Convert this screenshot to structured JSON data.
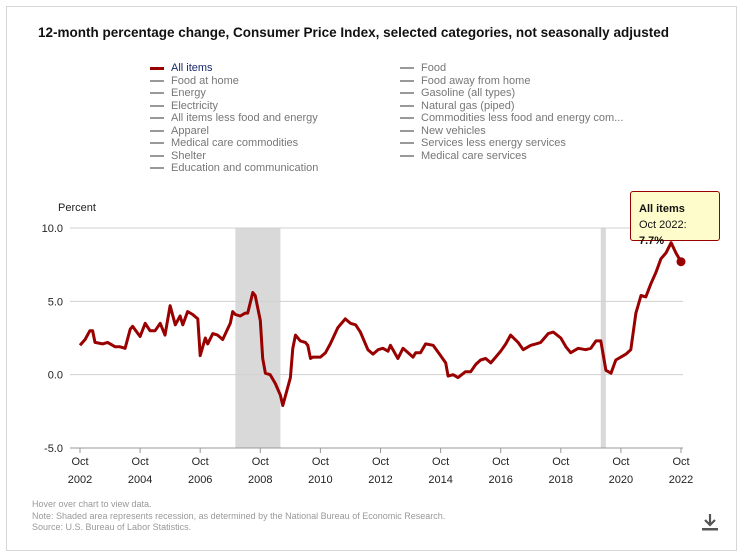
{
  "title": "12-month percentage change, Consumer Price Index, selected categories, not seasonally adjusted",
  "legend": {
    "col1": [
      "All items",
      "Food at home",
      "Energy",
      "Electricity",
      "All items less food and energy",
      "Apparel",
      "Medical care commodities",
      "Shelter",
      "Education and communication"
    ],
    "col2": [
      "Food",
      "Food away from home",
      "Gasoline (all types)",
      "Natural gas (piped)",
      "Commodities less food and energy com...",
      "New vehicles",
      "Services less energy services",
      "Medical care services"
    ]
  },
  "tooltip": {
    "title": "All items",
    "label": "Oct 2022:",
    "value": "7.7%"
  },
  "notes": [
    "Hover over chart to view data.",
    "Note: Shaded area represents recession, as determined by the National Bureau of Economic Research.",
    "Source: U.S. Bureau of Labor Statistics."
  ],
  "colors": {
    "series": "#990000",
    "recession": "#d9d9d9",
    "tooltip_bg": "#fffccc"
  },
  "icons": {
    "download": "download-icon"
  },
  "chart_data": {
    "type": "line",
    "ylabel": "Percent",
    "ylim": [
      -5.0,
      10.0
    ],
    "yticks": [
      "10.0",
      "5.0",
      "0.0",
      "-5.0"
    ],
    "ytick_values": [
      10,
      5,
      0,
      -5
    ],
    "xticks": [
      {
        "month": "Oct",
        "year": "2002",
        "t": 2002.75
      },
      {
        "month": "Oct",
        "year": "2004",
        "t": 2004.75
      },
      {
        "month": "Oct",
        "year": "2006",
        "t": 2006.75
      },
      {
        "month": "Oct",
        "year": "2008",
        "t": 2008.75
      },
      {
        "month": "Oct",
        "year": "2010",
        "t": 2010.75
      },
      {
        "month": "Oct",
        "year": "2012",
        "t": 2012.75
      },
      {
        "month": "Oct",
        "year": "2014",
        "t": 2014.75
      },
      {
        "month": "Oct",
        "year": "2016",
        "t": 2016.75
      },
      {
        "month": "Oct",
        "year": "2018",
        "t": 2018.75
      },
      {
        "month": "Oct",
        "year": "2020",
        "t": 2020.75
      },
      {
        "month": "Oct",
        "year": "2022",
        "t": 2022.75
      }
    ],
    "recessions": [
      [
        2007.92,
        2009.42
      ],
      [
        2020.08,
        2020.25
      ]
    ],
    "series": [
      {
        "name": "All items",
        "points": [
          [
            2002.75,
            2.0
          ],
          [
            2002.92,
            2.4
          ],
          [
            2003.08,
            3.0
          ],
          [
            2003.17,
            3.0
          ],
          [
            2003.25,
            2.2
          ],
          [
            2003.5,
            2.1
          ],
          [
            2003.67,
            2.2
          ],
          [
            2003.92,
            1.9
          ],
          [
            2004.08,
            1.9
          ],
          [
            2004.25,
            1.8
          ],
          [
            2004.42,
            3.1
          ],
          [
            2004.5,
            3.3
          ],
          [
            2004.75,
            2.6
          ],
          [
            2004.92,
            3.5
          ],
          [
            2005.08,
            3.0
          ],
          [
            2005.25,
            3.0
          ],
          [
            2005.42,
            3.5
          ],
          [
            2005.58,
            2.7
          ],
          [
            2005.75,
            4.7
          ],
          [
            2005.92,
            3.4
          ],
          [
            2006.08,
            4.0
          ],
          [
            2006.17,
            3.4
          ],
          [
            2006.33,
            4.3
          ],
          [
            2006.5,
            4.1
          ],
          [
            2006.67,
            3.8
          ],
          [
            2006.75,
            1.3
          ],
          [
            2006.92,
            2.5
          ],
          [
            2007.0,
            2.1
          ],
          [
            2007.17,
            2.8
          ],
          [
            2007.33,
            2.7
          ],
          [
            2007.5,
            2.4
          ],
          [
            2007.75,
            3.5
          ],
          [
            2007.83,
            4.3
          ],
          [
            2007.92,
            4.1
          ],
          [
            2008.08,
            4.0
          ],
          [
            2008.25,
            4.2
          ],
          [
            2008.33,
            4.2
          ],
          [
            2008.5,
            5.6
          ],
          [
            2008.58,
            5.4
          ],
          [
            2008.75,
            3.7
          ],
          [
            2008.83,
            1.1
          ],
          [
            2008.92,
            0.1
          ],
          [
            2009.08,
            0.0
          ],
          [
            2009.25,
            -0.6
          ],
          [
            2009.42,
            -1.4
          ],
          [
            2009.5,
            -2.1
          ],
          [
            2009.58,
            -1.5
          ],
          [
            2009.75,
            -0.2
          ],
          [
            2009.83,
            1.8
          ],
          [
            2009.92,
            2.7
          ],
          [
            2010.08,
            2.3
          ],
          [
            2010.25,
            2.2
          ],
          [
            2010.33,
            2.0
          ],
          [
            2010.42,
            1.1
          ],
          [
            2010.5,
            1.2
          ],
          [
            2010.75,
            1.2
          ],
          [
            2010.92,
            1.5
          ],
          [
            2011.08,
            2.1
          ],
          [
            2011.33,
            3.2
          ],
          [
            2011.58,
            3.8
          ],
          [
            2011.75,
            3.5
          ],
          [
            2011.92,
            3.4
          ],
          [
            2012.08,
            2.9
          ],
          [
            2012.33,
            1.7
          ],
          [
            2012.5,
            1.4
          ],
          [
            2012.67,
            1.7
          ],
          [
            2012.83,
            1.8
          ],
          [
            2013.0,
            1.6
          ],
          [
            2013.08,
            2.0
          ],
          [
            2013.33,
            1.1
          ],
          [
            2013.5,
            1.8
          ],
          [
            2013.67,
            1.5
          ],
          [
            2013.83,
            1.2
          ],
          [
            2013.92,
            1.5
          ],
          [
            2014.08,
            1.5
          ],
          [
            2014.25,
            2.1
          ],
          [
            2014.5,
            2.0
          ],
          [
            2014.75,
            1.3
          ],
          [
            2014.92,
            0.8
          ],
          [
            2015.0,
            -0.1
          ],
          [
            2015.17,
            0.0
          ],
          [
            2015.33,
            -0.2
          ],
          [
            2015.58,
            0.2
          ],
          [
            2015.75,
            0.2
          ],
          [
            2015.92,
            0.7
          ],
          [
            2016.08,
            1.0
          ],
          [
            2016.25,
            1.1
          ],
          [
            2016.42,
            0.8
          ],
          [
            2016.75,
            1.6
          ],
          [
            2016.92,
            2.1
          ],
          [
            2017.08,
            2.7
          ],
          [
            2017.33,
            2.2
          ],
          [
            2017.5,
            1.7
          ],
          [
            2017.75,
            2.0
          ],
          [
            2017.92,
            2.1
          ],
          [
            2018.08,
            2.2
          ],
          [
            2018.33,
            2.8
          ],
          [
            2018.5,
            2.9
          ],
          [
            2018.75,
            2.5
          ],
          [
            2018.92,
            1.9
          ],
          [
            2019.08,
            1.5
          ],
          [
            2019.33,
            1.8
          ],
          [
            2019.58,
            1.7
          ],
          [
            2019.75,
            1.8
          ],
          [
            2019.92,
            2.3
          ],
          [
            2020.08,
            2.3
          ],
          [
            2020.25,
            0.3
          ],
          [
            2020.42,
            0.1
          ],
          [
            2020.58,
            1.0
          ],
          [
            2020.75,
            1.2
          ],
          [
            2020.92,
            1.4
          ],
          [
            2021.08,
            1.7
          ],
          [
            2021.25,
            4.2
          ],
          [
            2021.42,
            5.4
          ],
          [
            2021.58,
            5.3
          ],
          [
            2021.75,
            6.2
          ],
          [
            2021.92,
            7.0
          ],
          [
            2022.08,
            7.9
          ],
          [
            2022.25,
            8.3
          ],
          [
            2022.42,
            9.0
          ],
          [
            2022.58,
            8.3
          ],
          [
            2022.75,
            7.7
          ]
        ]
      }
    ],
    "highlight": {
      "t": 2022.75,
      "value": 7.7
    }
  }
}
